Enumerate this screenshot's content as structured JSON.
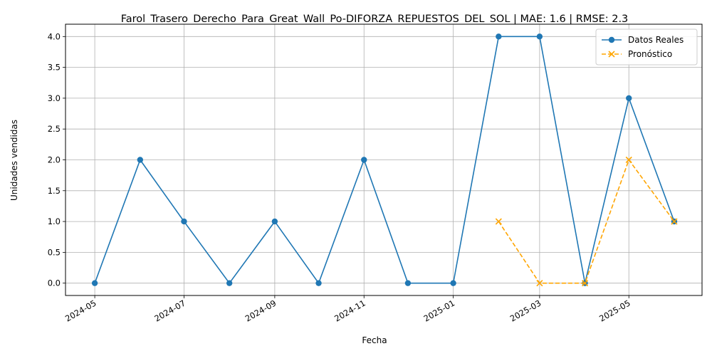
{
  "chart_data": {
    "type": "line",
    "title": "Farol_Trasero_Derecho_Para_Great_Wall_Po-DIFORZA_REPUESTOS_DEL_SOL | MAE: 1.6 | RMSE: 2.3",
    "xlabel": "Fecha",
    "ylabel": "Unidades vendidas",
    "grid": true,
    "legend_position": "top-right",
    "ylim": [
      -0.2,
      4.2
    ],
    "yticks": [
      "0.0",
      "0.5",
      "1.0",
      "1.5",
      "2.0",
      "2.5",
      "3.0",
      "3.5",
      "4.0"
    ],
    "xlim": [
      "2024-04-11",
      "2025-06-20"
    ],
    "xticks": [
      "2024-05",
      "2024-07",
      "2024-09",
      "2024-11",
      "2025-01",
      "2025-03",
      "2025-05"
    ],
    "series": [
      {
        "name": "Datos Reales",
        "color": "#1f77b4",
        "style": "solid",
        "marker": "circle",
        "x": [
          "2024-05-01",
          "2024-06-01",
          "2024-07-01",
          "2024-08-01",
          "2024-09-01",
          "2024-10-01",
          "2024-11-01",
          "2024-12-01",
          "2025-01-01",
          "2025-02-01",
          "2025-03-01",
          "2025-04-01",
          "2025-05-01",
          "2025-06-01"
        ],
        "values": [
          0,
          2,
          1,
          0,
          1,
          0,
          2,
          0,
          0,
          4,
          4,
          0,
          3,
          1
        ]
      },
      {
        "name": "Pronóstico",
        "color": "#ffa500",
        "style": "dashed",
        "marker": "x",
        "x": [
          "2025-02-01",
          "2025-03-01",
          "2025-04-01",
          "2025-05-01",
          "2025-06-01"
        ],
        "values": [
          1,
          0,
          0,
          2,
          1
        ]
      }
    ]
  }
}
